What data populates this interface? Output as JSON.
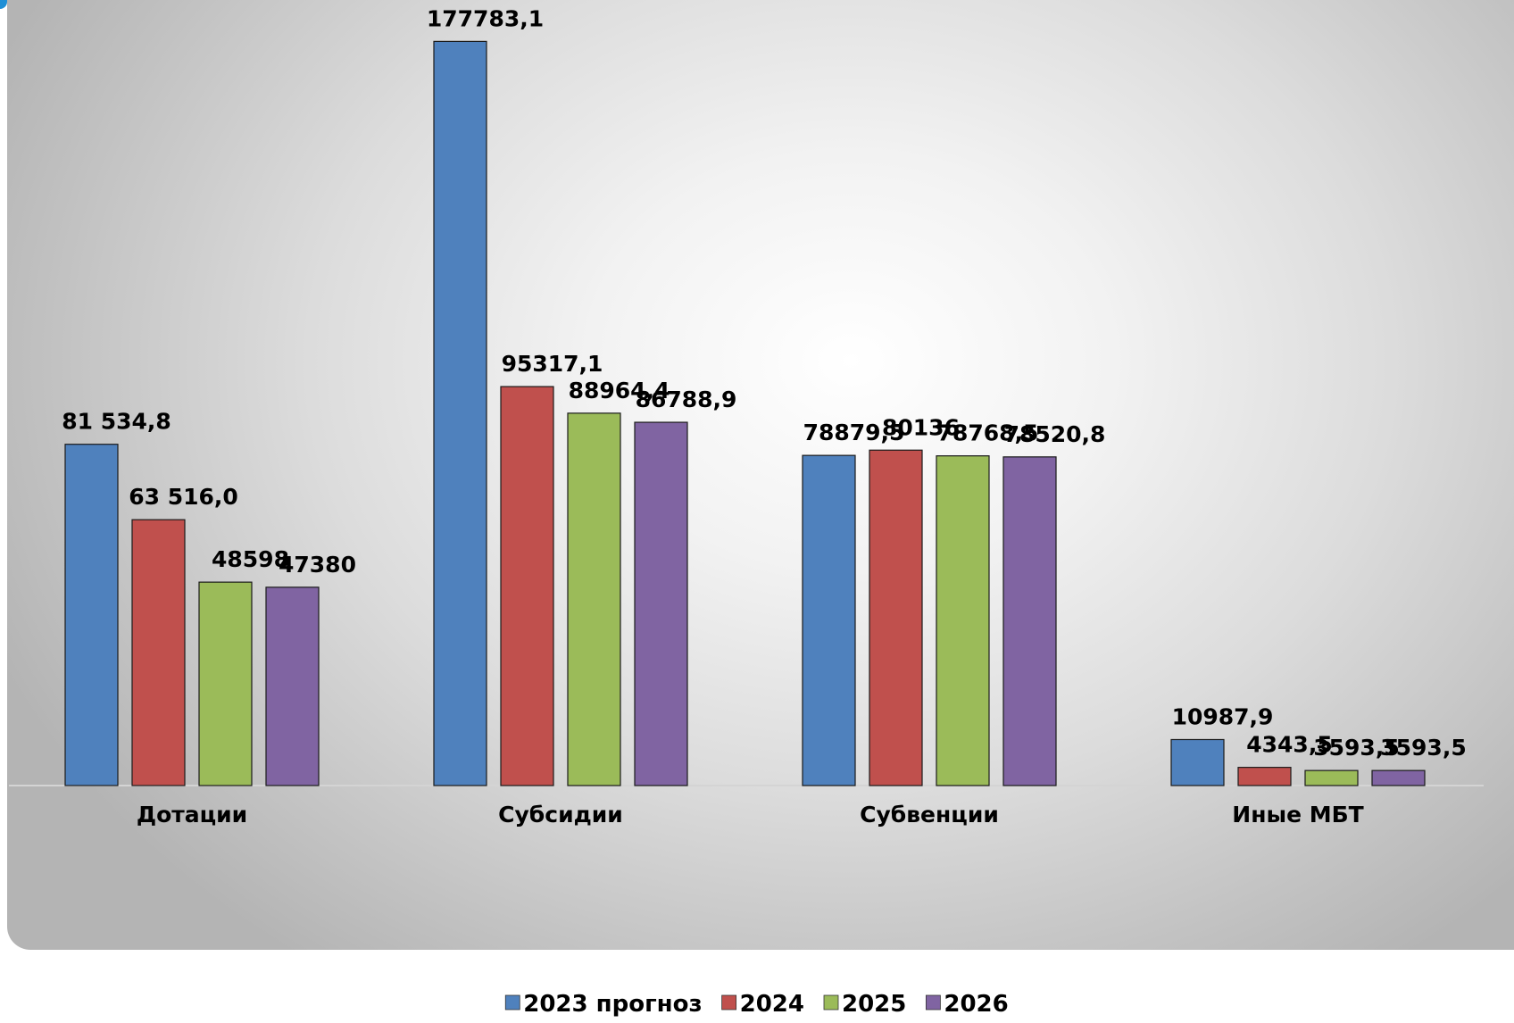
{
  "chart_data": {
    "type": "bar",
    "categories": [
      "Дотации",
      "Субсидии",
      "Субвенции",
      "Иные МБТ"
    ],
    "series": [
      {
        "name": "2023 прогноз",
        "color": "#4f81bd",
        "values": [
          81534.8,
          177783.1,
          78879.5,
          10987.9
        ],
        "labels": [
          "81 534,8",
          "177783,1",
          "78879,5",
          "10987,9"
        ]
      },
      {
        "name": "2024",
        "color": "#c0504d",
        "values": [
          63516.0,
          95317.1,
          80136,
          4343.5
        ],
        "labels": [
          "63 516,0",
          "95317,1",
          "80136",
          "4343,5"
        ]
      },
      {
        "name": "2025",
        "color": "#9bbb59",
        "values": [
          48598,
          88964.4,
          78768.5,
          3593.5
        ],
        "labels": [
          "48598",
          "88964,4",
          "78768,5",
          "3593,5"
        ]
      },
      {
        "name": "2026",
        "color": "#8064a2",
        "values": [
          47380,
          86788.9,
          78520.8,
          3593.5
        ],
        "labels": [
          "47380",
          "86788,9",
          "78520,8",
          "3593,5"
        ]
      }
    ],
    "ylim": [
      0,
      180000
    ],
    "grid": false,
    "legend_position": "bottom"
  }
}
